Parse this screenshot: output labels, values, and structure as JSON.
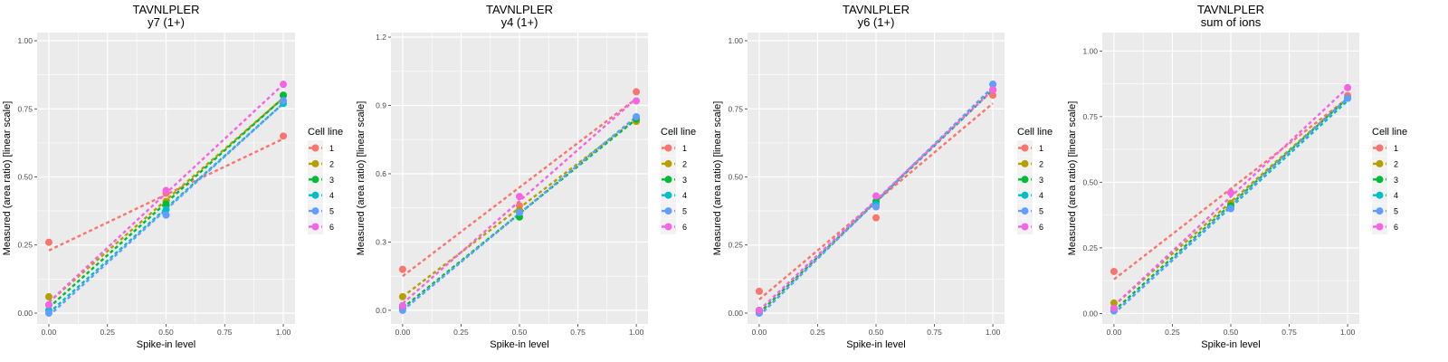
{
  "palette": [
    "#F8766D",
    "#B79F00",
    "#00BA38",
    "#00BFC4",
    "#619CFF",
    "#F564E3"
  ],
  "legend_title": "Cell line",
  "legend_labels": [
    "1",
    "2",
    "3",
    "4",
    "5",
    "6"
  ],
  "chart_data": [
    {
      "type": "scatter",
      "title": "TAVNLPLER",
      "subtitle": "y7 (1+)",
      "xlabel": "Spike-in level",
      "ylabel": "Measured (area ratio) [linear scale]",
      "x": [
        0,
        0.5,
        1
      ],
      "xlim": [
        -0.05,
        1.05
      ],
      "ylim": [
        -0.04,
        1.03
      ],
      "xticks": [
        0,
        0.25,
        0.5,
        0.75,
        1
      ],
      "xtick_labels": [
        "0.00",
        "0.25",
        "0.50",
        "0.75",
        "1.00"
      ],
      "yticks": [
        0,
        0.25,
        0.5,
        0.75,
        1
      ],
      "ytick_labels": [
        "0.00",
        "0.25",
        "0.50",
        "0.75",
        "1.00"
      ],
      "series": [
        {
          "name": "1",
          "values": [
            0.26,
            0.44,
            0.65
          ],
          "fit": [
            0.23,
            0.64
          ]
        },
        {
          "name": "2",
          "values": [
            0.06,
            0.41,
            0.8
          ],
          "fit": [
            0.04,
            0.79
          ]
        },
        {
          "name": "3",
          "values": [
            0.03,
            0.4,
            0.8
          ],
          "fit": [
            0.02,
            0.79
          ]
        },
        {
          "name": "4",
          "values": [
            0.01,
            0.38,
            0.77
          ],
          "fit": [
            0.0,
            0.77
          ]
        },
        {
          "name": "5",
          "values": [
            0.0,
            0.36,
            0.78
          ],
          "fit": [
            -0.01,
            0.77
          ]
        },
        {
          "name": "6",
          "values": [
            0.03,
            0.45,
            0.84
          ],
          "fit": [
            0.04,
            0.84
          ]
        }
      ]
    },
    {
      "type": "scatter",
      "title": "TAVNLPLER",
      "subtitle": "y4 (1+)",
      "xlabel": "Spike-in level",
      "ylabel": "Measured (area ratio) [linear scale]",
      "x": [
        0,
        0.5,
        1
      ],
      "xlim": [
        -0.05,
        1.05
      ],
      "ylim": [
        -0.06,
        1.22
      ],
      "xticks": [
        0,
        0.25,
        0.5,
        0.75,
        1
      ],
      "xtick_labels": [
        "0.00",
        "0.25",
        "0.50",
        "0.75",
        "1.00"
      ],
      "yticks": [
        0,
        0.3,
        0.6,
        0.9,
        1.2
      ],
      "ytick_labels": [
        "0.0",
        "0.3",
        "0.6",
        "0.9",
        "1.2"
      ],
      "series": [
        {
          "name": "1",
          "values": [
            0.18,
            0.46,
            0.96
          ],
          "fit": [
            0.15,
            0.93
          ]
        },
        {
          "name": "2",
          "values": [
            0.06,
            0.44,
            0.83
          ],
          "fit": [
            0.06,
            0.84
          ]
        },
        {
          "name": "3",
          "values": [
            0.02,
            0.41,
            0.84
          ],
          "fit": [
            0.01,
            0.84
          ]
        },
        {
          "name": "4",
          "values": [
            0.01,
            0.43,
            0.85
          ],
          "fit": [
            0.0,
            0.85
          ]
        },
        {
          "name": "5",
          "values": [
            0.0,
            0.43,
            0.85
          ],
          "fit": [
            0.0,
            0.85
          ]
        },
        {
          "name": "6",
          "values": [
            0.02,
            0.5,
            0.92
          ],
          "fit": [
            0.03,
            0.93
          ]
        }
      ]
    },
    {
      "type": "scatter",
      "title": "TAVNLPLER",
      "subtitle": "y6 (1+)",
      "xlabel": "Spike-in level",
      "ylabel": "Measured (area ratio) [linear scale]",
      "x": [
        0,
        0.5,
        1
      ],
      "xlim": [
        -0.05,
        1.05
      ],
      "ylim": [
        -0.04,
        1.03
      ],
      "xticks": [
        0,
        0.25,
        0.5,
        0.75,
        1
      ],
      "xtick_labels": [
        "0.00",
        "0.25",
        "0.50",
        "0.75",
        "1.00"
      ],
      "yticks": [
        0,
        0.25,
        0.5,
        0.75,
        1
      ],
      "ytick_labels": [
        "0.00",
        "0.25",
        "0.50",
        "0.75",
        "1.00"
      ],
      "series": [
        {
          "name": "1",
          "values": [
            0.08,
            0.35,
            0.8
          ],
          "fit": [
            0.05,
            0.77
          ]
        },
        {
          "name": "2",
          "values": [
            0.01,
            0.41,
            0.82
          ],
          "fit": [
            0.0,
            0.82
          ]
        },
        {
          "name": "3",
          "values": [
            0.01,
            0.41,
            0.82
          ],
          "fit": [
            0.0,
            0.82
          ]
        },
        {
          "name": "4",
          "values": [
            0.0,
            0.4,
            0.84
          ],
          "fit": [
            -0.01,
            0.83
          ]
        },
        {
          "name": "5",
          "values": [
            0.0,
            0.39,
            0.84
          ],
          "fit": [
            -0.01,
            0.83
          ]
        },
        {
          "name": "6",
          "values": [
            0.01,
            0.43,
            0.82
          ],
          "fit": [
            0.01,
            0.82
          ]
        }
      ]
    },
    {
      "type": "scatter",
      "title": "TAVNLPLER",
      "subtitle": "sum of ions",
      "xlabel": "Spike-in level",
      "ylabel": "Measured (area ratio) [linear scale]",
      "x": [
        0,
        0.5,
        1
      ],
      "xlim": [
        -0.05,
        1.05
      ],
      "ylim": [
        -0.04,
        1.07
      ],
      "xticks": [
        0,
        0.25,
        0.5,
        0.75,
        1
      ],
      "xtick_labels": [
        "0.00",
        "0.25",
        "0.50",
        "0.75",
        "1.00"
      ],
      "yticks": [
        0,
        0.25,
        0.5,
        0.75,
        1
      ],
      "ytick_labels": [
        "0.00",
        "0.25",
        "0.50",
        "0.75",
        "1.00"
      ],
      "series": [
        {
          "name": "1",
          "values": [
            0.16,
            0.46,
            0.83
          ],
          "fit": [
            0.13,
            0.82
          ]
        },
        {
          "name": "2",
          "values": [
            0.04,
            0.42,
            0.82
          ],
          "fit": [
            0.03,
            0.82
          ]
        },
        {
          "name": "3",
          "values": [
            0.02,
            0.41,
            0.82
          ],
          "fit": [
            0.01,
            0.82
          ]
        },
        {
          "name": "4",
          "values": [
            0.01,
            0.4,
            0.82
          ],
          "fit": [
            0.0,
            0.81
          ]
        },
        {
          "name": "5",
          "values": [
            0.01,
            0.4,
            0.82
          ],
          "fit": [
            0.0,
            0.82
          ]
        },
        {
          "name": "6",
          "values": [
            0.02,
            0.46,
            0.86
          ],
          "fit": [
            0.03,
            0.86
          ]
        }
      ]
    }
  ]
}
